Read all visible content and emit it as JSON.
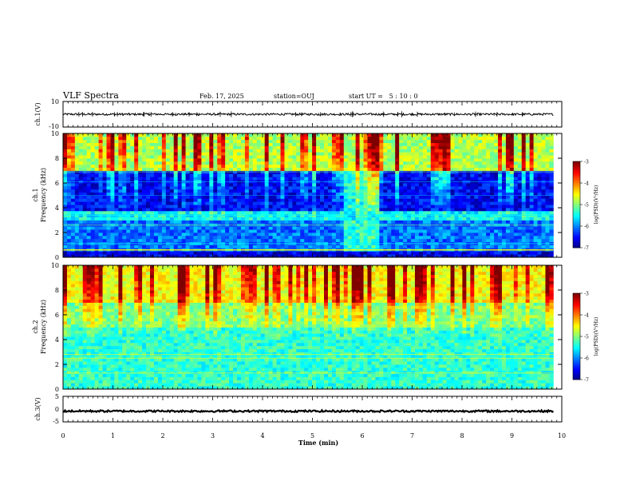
{
  "header": {
    "title": "VLF Spectra",
    "date": "Feb. 17, 2025",
    "station": "station=OUJ",
    "start_ut": "start UT =   5 : 10 : 0"
  },
  "chart_data": [
    {
      "type": "line",
      "panel": "ch1-waveform",
      "ylabel": "ch.1(V)",
      "ylim": [
        -10,
        10
      ],
      "yticks": [
        "10",
        "-10"
      ],
      "xlim": [
        0,
        10
      ],
      "x_data_extent": [
        0,
        9.83
      ],
      "baseline_v": 0,
      "amplitude_v": 0.8,
      "spike_v": 2.5
    },
    {
      "type": "heatmap",
      "panel": "ch1-spectrogram",
      "ylabel": "ch.1\nFrequency (kHz)",
      "ylim": [
        0,
        10
      ],
      "yticks": [
        "0",
        "2",
        "4",
        "6",
        "8",
        "10"
      ],
      "xlim": [
        0,
        10
      ],
      "x_data_extent": [
        0,
        9.83
      ],
      "colorbar": {
        "label": "log(PSD)(V²/Hz)",
        "range": [
          -7,
          -3
        ],
        "ticks": [
          "-3",
          "-4",
          "-5",
          "-6",
          "-7"
        ]
      }
    },
    {
      "type": "heatmap",
      "panel": "ch2-spectrogram",
      "ylabel": "ch.2\nFrequency (kHz)",
      "ylim": [
        0,
        10
      ],
      "yticks": [
        "0",
        "2",
        "4",
        "6",
        "8",
        "10"
      ],
      "xlim": [
        0,
        10
      ],
      "x_data_extent": [
        0,
        9.83
      ],
      "colorbar": {
        "label": "log(PSD)(V²/Hz)",
        "range": [
          -7,
          -3
        ],
        "ticks": [
          "-3",
          "-4",
          "-5",
          "-6",
          "-7"
        ]
      }
    },
    {
      "type": "line",
      "panel": "ch3-waveform",
      "ylabel": "ch.3(V)",
      "ylim": [
        -5,
        5
      ],
      "yticks": [
        "5",
        "0",
        "-5"
      ],
      "xlim": [
        0,
        10
      ],
      "x_data_extent": [
        0,
        9.83
      ],
      "baseline_v": -0.8,
      "amplitude_v": 0.35
    }
  ],
  "x_axis": {
    "label": "Time (min)",
    "ticks": [
      "0",
      "1",
      "2",
      "3",
      "4",
      "5",
      "6",
      "7",
      "8",
      "9",
      "10"
    ]
  },
  "colors": {
    "colormap": [
      "#00007f",
      "#0000ff",
      "#007fff",
      "#00ffff",
      "#7fff7f",
      "#ffff00",
      "#ff7f00",
      "#ff0000",
      "#7f0000"
    ]
  }
}
